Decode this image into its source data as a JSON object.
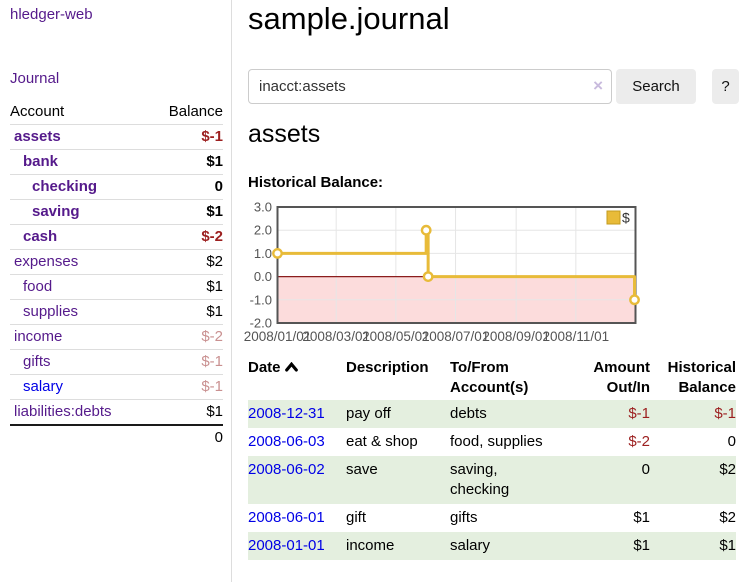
{
  "sidebar": {
    "brand": "hledger-web",
    "journal_label": "Journal",
    "accounts_table": {
      "headers": {
        "account": "Account",
        "balance": "Balance"
      },
      "rows": [
        {
          "name": "assets",
          "indent": 1,
          "bold": true,
          "balance": "$-1",
          "balance_style": "neg"
        },
        {
          "name": "bank",
          "indent": 2,
          "bold": true,
          "balance": "$1",
          "balance_style": "pos"
        },
        {
          "name": "checking",
          "indent": 3,
          "bold": true,
          "balance": "0",
          "balance_style": "pos"
        },
        {
          "name": "saving",
          "indent": 3,
          "bold": true,
          "balance": "$1",
          "balance_style": "pos"
        },
        {
          "name": "cash",
          "indent": 2,
          "bold": true,
          "balance": "$-2",
          "balance_style": "neg"
        },
        {
          "name": "expenses",
          "indent": 1,
          "bold": false,
          "balance": "$2",
          "balance_style": "pos"
        },
        {
          "name": "food",
          "indent": 2,
          "bold": false,
          "balance": "$1",
          "balance_style": "pos"
        },
        {
          "name": "supplies",
          "indent": 2,
          "bold": false,
          "balance": "$1",
          "balance_style": "pos"
        },
        {
          "name": "income",
          "indent": 1,
          "bold": false,
          "balance": "$-2",
          "balance_style": "neg-faded"
        },
        {
          "name": "gifts",
          "indent": 2,
          "bold": false,
          "balance": "$-1",
          "balance_style": "neg-faded"
        },
        {
          "name": "salary",
          "indent": 2,
          "bold": false,
          "balance": "$-1",
          "balance_style": "neg-faded",
          "link_color": "blue"
        },
        {
          "name": "liabilities:debts",
          "indent": 1,
          "bold": false,
          "balance": "$1",
          "balance_style": "pos"
        }
      ],
      "total": "0"
    }
  },
  "main": {
    "title": "sample.journal",
    "search": {
      "value": "inacct:assets",
      "clear_icon": "×",
      "search_label": "Search",
      "help_label": "?"
    },
    "section_title": "assets",
    "chart_label": "Historical Balance:"
  },
  "chart_data": {
    "type": "line",
    "step": true,
    "title": "Historical Balance:",
    "series": [
      {
        "name": "$",
        "points": [
          [
            "2008-01-01",
            1
          ],
          [
            "2008-06-01",
            2
          ],
          [
            "2008-06-03",
            0
          ],
          [
            "2008-12-31",
            -1
          ]
        ]
      }
    ],
    "ylim": [
      -2,
      3
    ],
    "yticks": [
      "3.0",
      "2.0",
      "1.0",
      "0.0",
      "-1.0",
      "-2.0"
    ],
    "xlim": [
      "2008-01-01",
      "2009-01-01"
    ],
    "xticks": [
      "2008/01/01",
      "2008/03/01",
      "2008/05/01",
      "2008/07/01",
      "2008/09/01",
      "2008/11/01"
    ],
    "legend": {
      "position": "top-right",
      "label": "$"
    },
    "grid": true,
    "colors": {
      "series": "#e8bb39",
      "marker_fill": "#ffffff",
      "negative_fill": "#fcdcdc",
      "zero_line": "#8b1d1d",
      "frame": "#555555",
      "grid": "#e6e6e6",
      "tick_text": "#545454"
    }
  },
  "transactions": {
    "headers": {
      "date": "Date",
      "description": "Description",
      "tofrom": "To/From Account(s)",
      "amount": "Amount Out/In",
      "balance": "Historical Balance"
    },
    "rows": [
      {
        "date": "2008-12-31",
        "description": "pay off",
        "accounts": "debts",
        "amount": "$-1",
        "amount_neg": true,
        "balance": "$-1",
        "balance_neg": true
      },
      {
        "date": "2008-06-03",
        "description": "eat & shop",
        "accounts": "food, supplies",
        "amount": "$-2",
        "amount_neg": true,
        "balance": "0",
        "balance_neg": false
      },
      {
        "date": "2008-06-02",
        "description": "save",
        "accounts": "saving, checking",
        "amount": "0",
        "amount_neg": false,
        "balance": "$2",
        "balance_neg": false
      },
      {
        "date": "2008-06-01",
        "description": "gift",
        "accounts": "gifts",
        "amount": "$1",
        "amount_neg": false,
        "balance": "$2",
        "balance_neg": false
      },
      {
        "date": "2008-01-01",
        "description": "income",
        "accounts": "salary",
        "amount": "$1",
        "amount_neg": false,
        "balance": "$1",
        "balance_neg": false
      }
    ]
  },
  "colors": {
    "link_purple": "#551a8b",
    "link_blue": "#0000e6",
    "negative": "#9c1f1f",
    "negative_faded": "#c99090",
    "row_green": "#e4efdf"
  }
}
